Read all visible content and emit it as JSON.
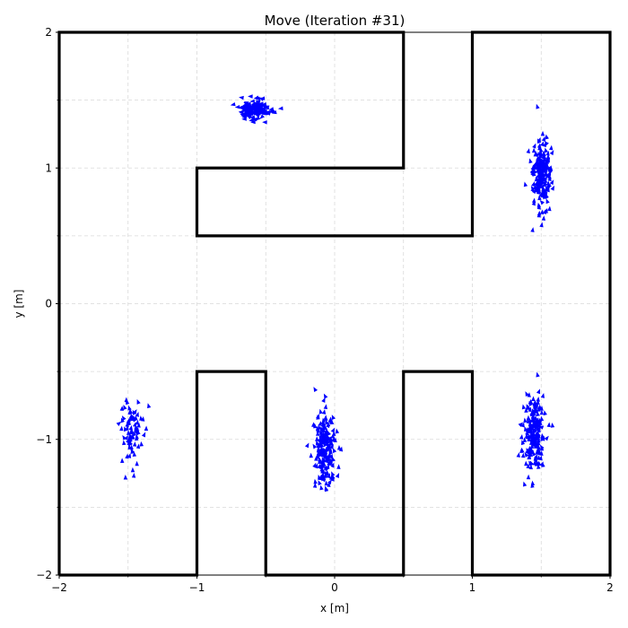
{
  "chart_data": {
    "type": "scatter",
    "title": "Move (Iteration #31)",
    "xlabel": "x [m]",
    "ylabel": "y [m]",
    "xlim": [
      -2,
      2
    ],
    "ylim": [
      -2,
      2
    ],
    "xticks": [
      -2,
      -1,
      0,
      1,
      2
    ],
    "yticks": [
      -2,
      -1,
      0,
      1,
      2
    ],
    "xtick_labels": [
      "−2",
      "−1",
      "0",
      "1",
      "2"
    ],
    "ytick_labels": [
      "−2",
      "−1",
      "0",
      "1",
      "2"
    ],
    "minor_ticks": [
      -1.5,
      -0.5,
      0.5,
      1.5
    ],
    "grid": true,
    "marker_color": "#0000ff",
    "wall_color": "#000000",
    "walls": [
      [
        [
          -2,
          -2
        ],
        [
          -1,
          -2
        ],
        [
          -1,
          -0.5
        ],
        [
          -0.5,
          -0.5
        ],
        [
          -0.5,
          -2
        ],
        [
          0.5,
          -2
        ],
        [
          0.5,
          -0.5
        ],
        [
          1,
          -0.5
        ],
        [
          1,
          -2
        ],
        [
          2,
          -2
        ],
        [
          2,
          2
        ],
        [
          1,
          2
        ],
        [
          1,
          0.5
        ],
        [
          -1,
          0.5
        ],
        [
          -1,
          1
        ],
        [
          0.5,
          1
        ],
        [
          0.5,
          2
        ],
        [
          -2,
          2
        ],
        [
          -2,
          -2
        ]
      ]
    ],
    "particle_clusters": [
      {
        "name": "cluster-top-left",
        "cx": -0.58,
        "cy": 1.43,
        "sx": 0.055,
        "sy": 0.035,
        "count": 160,
        "heading_deg": 180
      },
      {
        "name": "cluster-right-upper",
        "cx": 1.5,
        "cy": 0.95,
        "sx": 0.035,
        "sy": 0.14,
        "count": 200,
        "heading_deg": 90
      },
      {
        "name": "cluster-bottom-left",
        "cx": -1.47,
        "cy": -0.95,
        "sx": 0.035,
        "sy": 0.13,
        "count": 80,
        "heading_deg": 90
      },
      {
        "name": "cluster-bottom-center",
        "cx": -0.07,
        "cy": -1.05,
        "sx": 0.035,
        "sy": 0.14,
        "count": 200,
        "heading_deg": 90
      },
      {
        "name": "cluster-bottom-right",
        "cx": 1.45,
        "cy": -0.97,
        "sx": 0.04,
        "sy": 0.14,
        "count": 200,
        "heading_deg": 90
      }
    ]
  }
}
